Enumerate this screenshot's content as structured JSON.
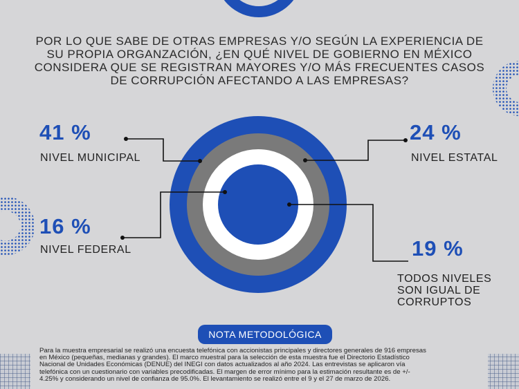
{
  "title": "POR LO QUE SABE DE OTRAS EMPRESAS Y/O SEGÚN LA EXPERIENCIA DE SU PROPIA ORGANZACIÓN, ¿EN QUÉ NIVEL DE GOBIERNO EN MÉXICO CONSIDERA QUE SE REGISTRAN MAYORES Y/O MÁS FRECUENTES CASOS DE CORRUPCIÓN AFECTANDO A LAS EMPRESAS?",
  "colors": {
    "accent": "#1e4fb6",
    "gray_ring": "#7a7a7a",
    "white_ring": "#ffffff",
    "background": "#d6d6d8"
  },
  "chart_data": {
    "type": "concentric-rings",
    "categories": [
      "NIVEL MUNICIPAL",
      "NIVEL ESTATAL",
      "NIVEL FEDERAL",
      "TODOS NIVELES SON IGUAL DE CORRUPTOS"
    ],
    "values": [
      41,
      24,
      16,
      19
    ],
    "value_labels": [
      "41 %",
      "24 %",
      "16 %",
      "19 %"
    ],
    "ring_colors": [
      "#1e4fb6",
      "#7a7a7a",
      "#ffffff",
      "#1e4fb6"
    ]
  },
  "note": {
    "heading": "NOTA METODOLÓGICA",
    "lines": [
      "Para la muestra empresarial se realizó una encuesta telefónica con accionistas principales y directores generales de 916 empresas",
      "en México (pequeñas, medianas y grandes). El marco muestral para la selección de esta muestra fue el Directorio Estadístico",
      "Nacional de Unidades Económicas (DENUE) del INEGI con datos actualizados al año 2024. Las entrevistas se aplicaron vía",
      "telefónica con un cuestionario con variables precodificadas. El margen de error mínimo para la estimación resultante es de +/-",
      "4.25% y considerando un nivel de confianza de 95.0%. El levantamiento se realizó entre el 9 y el 27 de marzo de 2026."
    ]
  }
}
